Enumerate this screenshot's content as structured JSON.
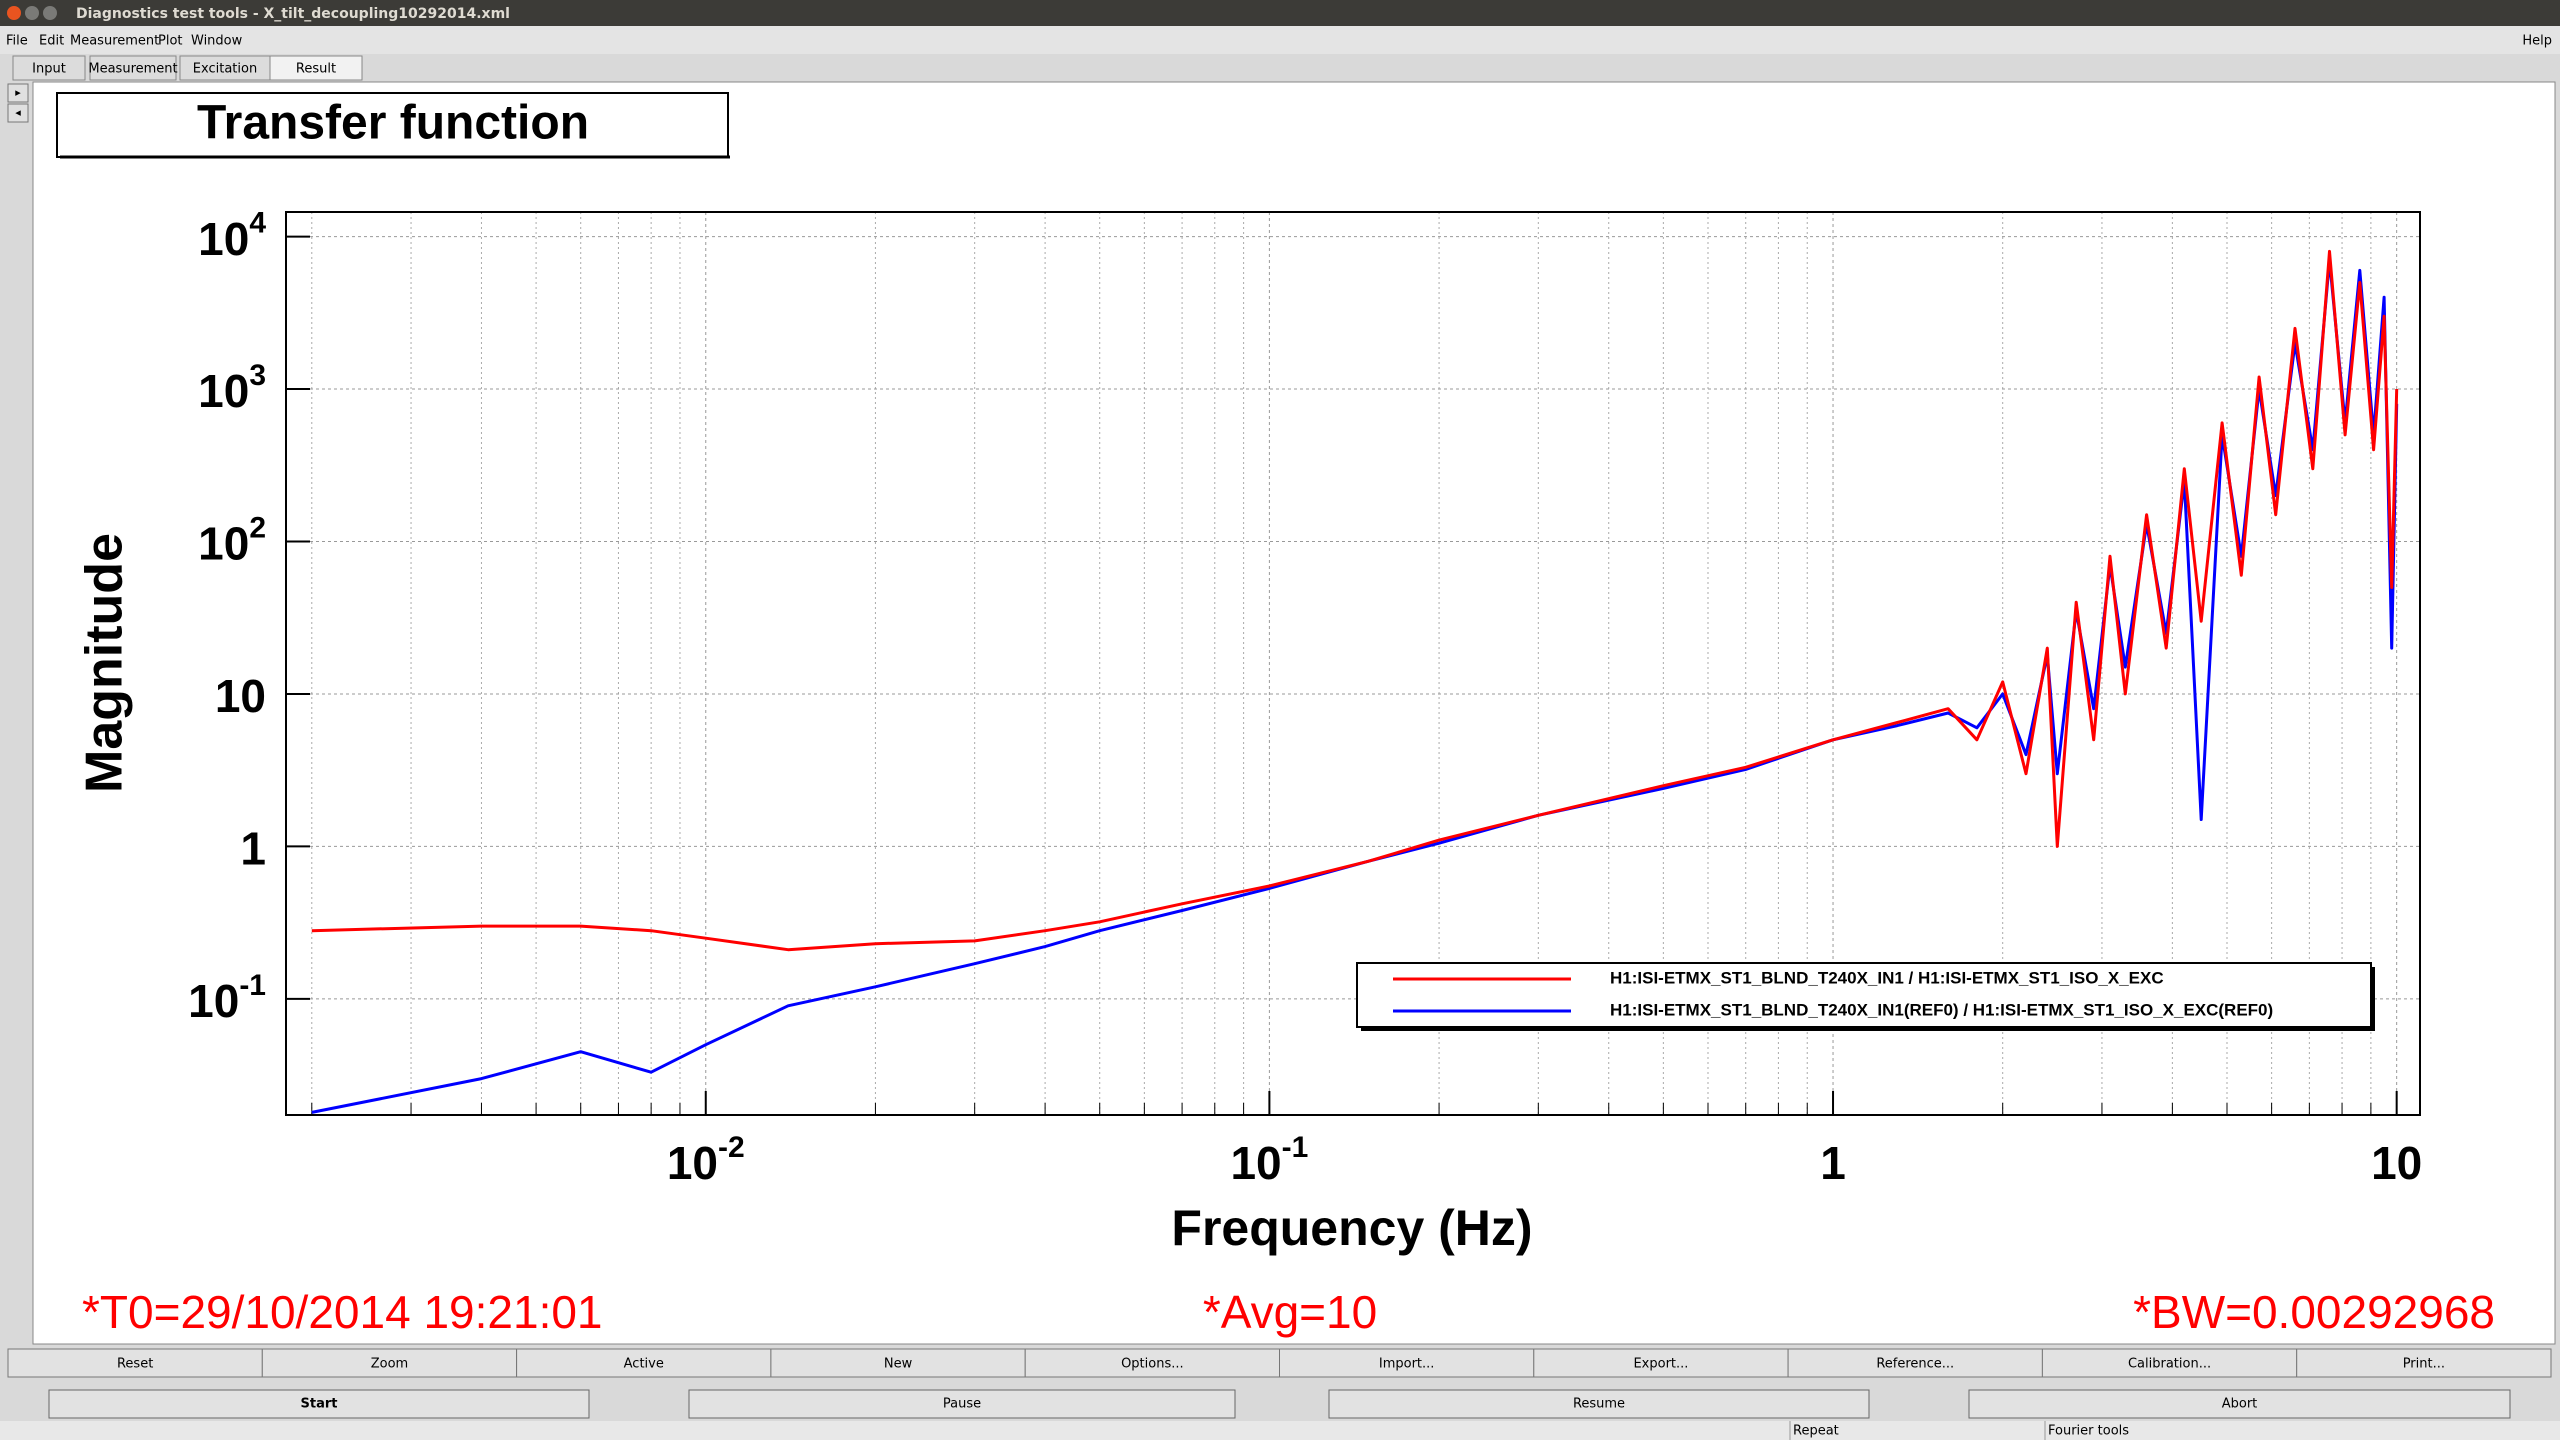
{
  "window": {
    "title": "Diagnostics test tools - X_tilt_decoupling10292014.xml"
  },
  "menu": [
    "File",
    "Edit",
    "Measurement",
    "Plot",
    "Window"
  ],
  "help": "Help",
  "tabs": [
    "Input",
    "Measurement",
    "Excitation",
    "Result"
  ],
  "buttons": [
    "Reset",
    "Zoom",
    "Active",
    "New",
    "Options...",
    "Import...",
    "Export...",
    "Reference...",
    "Calibration...",
    "Print..."
  ],
  "controls": [
    "Start",
    "Pause",
    "Resume",
    "Abort"
  ],
  "statusbar": [
    "Repeat",
    "Fourier tools"
  ],
  "chart_data": {
    "type": "line",
    "title": "Transfer function",
    "xlabel": "Frequency (Hz)",
    "ylabel": "Magnitude",
    "xscale": "log",
    "yscale": "log",
    "xlim": [
      0.0018,
      11
    ],
    "ylim": [
      0.0173,
      14500
    ],
    "xticks": [
      {
        "value": 0.01,
        "label": "10^-2"
      },
      {
        "value": 0.1,
        "label": "10^-1"
      },
      1,
      10
    ],
    "yticks": [
      {
        "value": 0.1,
        "label": "10^-1"
      },
      1,
      10,
      {
        "value": 100,
        "label": "10^2"
      },
      {
        "value": 1000,
        "label": "10^3"
      },
      {
        "value": 10000,
        "label": "10^4"
      }
    ],
    "x_minor_grid": [
      0.002,
      0.003,
      0.004,
      0.005,
      0.006,
      0.007,
      0.008,
      0.009,
      0.02,
      0.03,
      0.04,
      0.05,
      0.06,
      0.07,
      0.08,
      0.09,
      0.2,
      0.3,
      0.4,
      0.5,
      0.6,
      0.7,
      0.8,
      0.9,
      2,
      3,
      4,
      5,
      6,
      7,
      8,
      9
    ],
    "grid": true,
    "legend": "bottom right",
    "x": [
      0.002,
      0.004,
      0.006,
      0.008,
      0.01,
      0.014,
      0.02,
      0.03,
      0.04,
      0.05,
      0.07,
      0.1,
      0.15,
      0.2,
      0.3,
      0.5,
      0.7,
      1,
      1.3,
      1.6,
      1.8,
      2.0,
      2.2,
      2.4,
      2.5,
      2.7,
      2.9,
      3.1,
      3.3,
      3.6,
      3.9,
      4.2,
      4.5,
      4.9,
      5.3,
      5.7,
      6.1,
      6.6,
      7.1,
      7.6,
      8.1,
      8.6,
      9.1,
      9.5,
      9.8,
      10
    ],
    "series": [
      {
        "name": "H1:ISI-ETMX_ST1_BLND_T240X_IN1 / H1:ISI-ETMX_ST1_ISO_X_EXC",
        "color": "#ff0000",
        "values": [
          0.28,
          0.3,
          0.3,
          0.28,
          0.25,
          0.21,
          0.23,
          0.24,
          0.28,
          0.32,
          0.42,
          0.55,
          0.8,
          1.1,
          1.6,
          2.5,
          3.3,
          5,
          6.5,
          8,
          5,
          12,
          3,
          20,
          1,
          40,
          5,
          80,
          10,
          150,
          20,
          300,
          30,
          600,
          60,
          1200,
          150,
          2500,
          300,
          8000,
          500,
          5000,
          400,
          3000,
          50,
          1000
        ]
      },
      {
        "name": "H1:ISI-ETMX_ST1_BLND_T240X_IN1(REF0) / H1:ISI-ETMX_ST1_ISO_X_EXC(REF0)",
        "color": "#0000ff",
        "values": [
          0.018,
          0.03,
          0.045,
          0.033,
          0.05,
          0.09,
          0.12,
          0.17,
          0.22,
          0.28,
          0.38,
          0.53,
          0.8,
          1.05,
          1.6,
          2.4,
          3.2,
          5,
          6.2,
          7.5,
          6,
          10,
          4,
          18,
          3,
          35,
          8,
          70,
          15,
          130,
          25,
          250,
          1.5,
          500,
          80,
          1000,
          200,
          2000,
          400,
          7000,
          600,
          6000,
          500,
          4000,
          20,
          800
        ]
      }
    ],
    "annotations": [
      "*T0=29/10/2014 19:21:01",
      "*Avg=10",
      "*BW=0.00292968"
    ]
  }
}
